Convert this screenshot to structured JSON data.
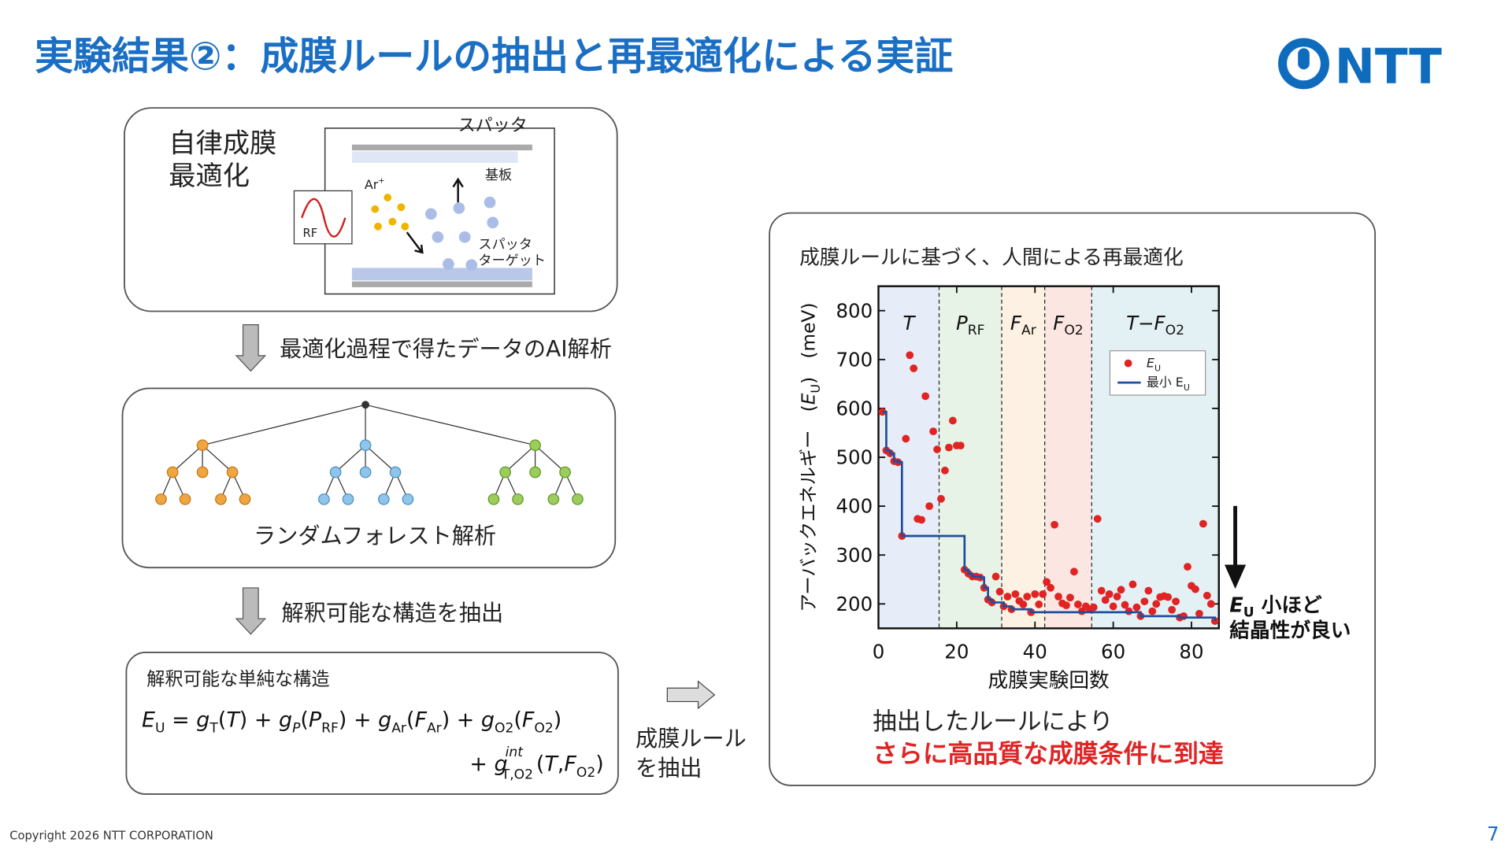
{
  "header": {
    "title": "実験結果②：成膜ルールの抽出と再最適化による実証",
    "logo": "NTT"
  },
  "autonomous_panel": {
    "title": [
      "自律成膜",
      "最適化"
    ],
    "diagram": {
      "sputter": "スパッタ",
      "substrate": "基板",
      "ion": "Ar",
      "ion_charge": "+",
      "rf": "RF",
      "target": [
        "スパッタ",
        "ターゲット"
      ]
    }
  },
  "step1": "最適化過程で得たデータのAI解析",
  "forest_panel": {
    "label": "ランダムフォレスト解析"
  },
  "step2": "解釈可能な構造を抽出",
  "structure_panel": {
    "title": "解釈可能な単純な構造",
    "equation": [
      [
        "E",
        "U",
        " = ",
        "g",
        "T",
        "(",
        "T",
        ") + ",
        "g",
        "P",
        "(",
        "P",
        "RF",
        ") + ",
        "g",
        "Ar",
        "(",
        "F",
        "Ar",
        ") + ",
        "g",
        "O2",
        "(",
        "F",
        "O2",
        ")"
      ],
      [
        "+ ",
        "g",
        "int",
        "T,O2",
        "(",
        "T",
        ",",
        "F",
        "O2",
        ")"
      ]
    ]
  },
  "rule_label": [
    "成膜ルール",
    "を抽出"
  ],
  "chart_data": {
    "type": "scatter",
    "title": "成膜ルールに基づく、人間による再最適化",
    "xlabel": "成膜実験回数",
    "ylabel": [
      "アーバックエネルギー　(",
      "E",
      "U",
      ")　(meV)"
    ],
    "xlim": [
      0,
      87
    ],
    "ylim": [
      150,
      850
    ],
    "xticks": [
      0,
      20,
      40,
      60,
      80
    ],
    "yticks": [
      200,
      300,
      400,
      500,
      600,
      700,
      800
    ],
    "legend": "upper right",
    "regions": [
      {
        "start": 0,
        "end": 15.5,
        "color": "#e6edf8",
        "label": "T"
      },
      {
        "start": 15.5,
        "end": 31.5,
        "color": "#e6f3e6",
        "label": "P",
        "label_sub": "RF"
      },
      {
        "start": 31.5,
        "end": 42.5,
        "color": "#fcf1e2",
        "label": "F",
        "label_sub": "Ar"
      },
      {
        "start": 42.5,
        "end": 54.5,
        "color": "#fbe6e2",
        "label": "F",
        "label_sub": "O2"
      },
      {
        "start": 54.5,
        "end": 87,
        "color": "#e4f1f4",
        "label": "T−F",
        "label_sub": "O2"
      }
    ],
    "x": [
      1,
      2,
      3,
      4,
      5,
      6,
      7,
      8,
      9,
      10,
      11,
      12,
      13,
      14,
      15,
      16,
      17,
      18,
      19,
      20,
      21,
      22,
      23,
      24,
      25,
      26,
      27,
      28,
      29,
      30,
      31,
      32,
      33,
      34,
      35,
      36,
      37,
      38,
      39,
      40,
      41,
      42,
      43,
      44,
      45,
      46,
      47,
      48,
      49,
      50,
      51,
      52,
      53,
      54,
      55,
      56,
      57,
      58,
      59,
      60,
      61,
      62,
      63,
      64,
      65,
      66,
      67,
      68,
      69,
      70,
      71,
      72,
      73,
      74,
      75,
      76,
      77,
      78,
      79,
      80,
      81,
      82,
      83,
      84,
      85,
      86
    ],
    "series": [
      {
        "name": "E",
        "name_sub": "U",
        "type": "scatter",
        "color": "#e02424",
        "values": [
          593,
          514,
          508,
          492,
          490,
          339,
          538,
          709,
          682,
          374,
          372,
          625,
          400,
          553,
          516,
          415,
          473,
          520,
          575,
          524,
          524,
          270,
          262,
          256,
          256,
          254,
          233,
          209,
          203,
          256,
          225,
          195,
          215,
          189,
          220,
          206,
          199,
          215,
          183,
          220,
          199,
          220,
          245,
          233,
          362,
          215,
          201,
          197,
          213,
          266,
          199,
          185,
          195,
          189,
          193,
          374,
          227,
          208,
          220,
          195,
          215,
          229,
          198,
          185,
          240,
          193,
          175,
          205,
          227,
          185,
          200,
          214,
          216,
          214,
          188,
          205,
          172,
          175,
          276,
          237,
          230,
          180,
          364,
          217,
          200,
          165
        ]
      },
      {
        "name": "最小 E",
        "name_sub": "U",
        "type": "line",
        "drawstyle": "steps-post",
        "color": "#1f4e9c",
        "values": [
          593,
          514,
          508,
          492,
          490,
          339,
          339,
          339,
          339,
          339,
          339,
          339,
          339,
          339,
          339,
          339,
          339,
          339,
          339,
          339,
          339,
          270,
          262,
          256,
          256,
          254,
          233,
          209,
          203,
          203,
          203,
          195,
          195,
          189,
          189,
          189,
          189,
          189,
          183,
          183,
          183,
          183,
          183,
          183,
          183,
          183,
          183,
          183,
          183,
          183,
          183,
          183,
          183,
          183,
          183,
          183,
          183,
          183,
          183,
          183,
          183,
          183,
          183,
          183,
          183,
          183,
          175,
          175,
          175,
          175,
          175,
          175,
          175,
          175,
          175,
          175,
          172,
          172,
          172,
          172,
          172,
          172,
          172,
          172,
          172,
          165
        ]
      }
    ],
    "annotations": [
      [
        "E",
        "U",
        " 小ほど"
      ],
      "結晶性が良い"
    ]
  },
  "conclusion": [
    "抽出したルールにより",
    "さらに高品質な成膜条件に到達"
  ],
  "footer": {
    "copyright": "Copyright 2026 NTT CORPORATION",
    "page": "7"
  }
}
